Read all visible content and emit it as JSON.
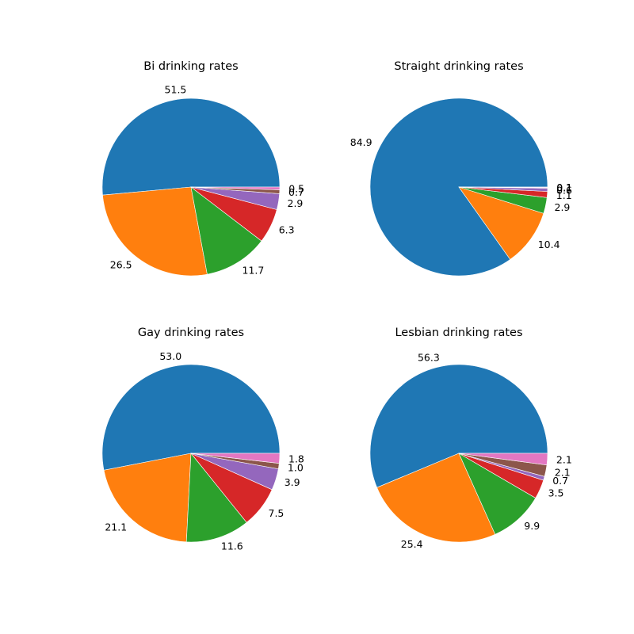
{
  "chart_data": [
    {
      "type": "pie",
      "title": "Bi drinking rates",
      "values": [
        51.5,
        26.5,
        11.7,
        6.3,
        2.9,
        0.7,
        0.5
      ],
      "labels": [
        "51.5",
        "26.5",
        "11.7",
        "6.3",
        "2.9",
        "0.7",
        "0.5"
      ]
    },
    {
      "type": "pie",
      "title": "Straight drinking rates",
      "values": [
        84.9,
        10.4,
        2.9,
        1.1,
        0.6,
        0.1,
        0.1
      ],
      "labels": [
        "84.9",
        "10.4",
        "2.9",
        "1.1",
        "0.6",
        "0.1",
        "0.1"
      ]
    },
    {
      "type": "pie",
      "title": "Gay drinking rates",
      "values": [
        53.0,
        21.1,
        11.6,
        7.5,
        3.9,
        1.0,
        1.8
      ],
      "labels": [
        "53.0",
        "21.1",
        "11.6",
        "7.5",
        "3.9",
        "1.0",
        "1.8"
      ]
    },
    {
      "type": "pie",
      "title": "Lesbian drinking rates",
      "values": [
        56.3,
        25.4,
        9.9,
        3.5,
        0.7,
        2.1,
        2.1
      ],
      "labels": [
        "56.3",
        "25.4",
        "9.9",
        "3.5",
        "0.7",
        "2.1",
        "2.1"
      ]
    }
  ],
  "colors": [
    "#1f77b4",
    "#ff7f0e",
    "#2ca02c",
    "#d62728",
    "#9467bd",
    "#8c564b",
    "#e377c2"
  ]
}
